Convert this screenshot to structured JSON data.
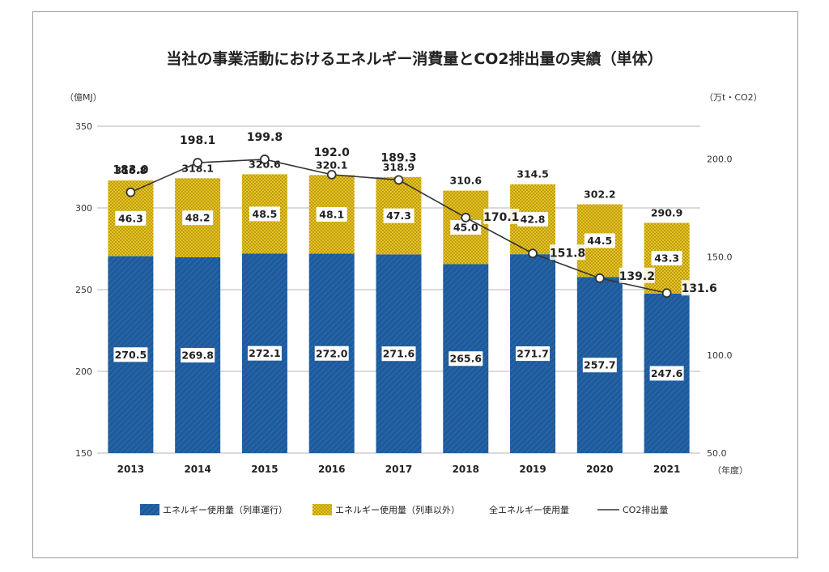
{
  "chart_data": {
    "type": "bar",
    "title": "当社の事業活動におけるエネルギー消費量とCO2排出量の実績（単体）",
    "left_unit": "（億MJ）",
    "right_unit": "（万t・CO2）",
    "x_unit": "（年度）",
    "categories": [
      "2013",
      "2014",
      "2015",
      "2016",
      "2017",
      "2018",
      "2019",
      "2020",
      "2021"
    ],
    "y_left": {
      "min": 150,
      "max": 350,
      "ticks": [
        "350",
        "300",
        "250",
        "200",
        "150"
      ],
      "tick_values": [
        350,
        300,
        250,
        200,
        150
      ]
    },
    "y_right": {
      "min": 50,
      "max": 216.7,
      "ticks": [
        "200.0",
        "150.0",
        "100.0",
        "50.0"
      ],
      "tick_values": [
        200,
        150,
        100,
        50
      ]
    },
    "series": [
      {
        "name": "エネルギー使用量（列車運行）",
        "type": "bar",
        "color": "#1f5a9a",
        "values": [
          270.5,
          269.8,
          272.1,
          272.0,
          271.6,
          265.6,
          271.7,
          257.7,
          247.6
        ],
        "labels": [
          "270.5",
          "269.8",
          "272.1",
          "272.0",
          "271.6",
          "265.6",
          "271.7",
          "257.7",
          "247.6"
        ]
      },
      {
        "name": "エネルギー使用量（列車以外）",
        "type": "bar",
        "color": "#e6c21f",
        "values": [
          46.3,
          48.2,
          48.5,
          48.1,
          47.3,
          45.0,
          42.8,
          44.5,
          43.3
        ],
        "labels": [
          "46.3",
          "48.2",
          "48.5",
          "48.1",
          "47.3",
          "45.0",
          "42.8",
          "44.5",
          "43.3"
        ]
      },
      {
        "name": "全エネルギー使用量",
        "type": "total",
        "values": [
          316.8,
          318.1,
          320.6,
          320.1,
          318.9,
          310.6,
          314.5,
          302.2,
          290.9
        ],
        "labels": [
          "316.8",
          "318.1",
          "320.6",
          "320.1",
          "318.9",
          "310.6",
          "314.5",
          "302.2",
          "290.9"
        ]
      },
      {
        "name": "CO2排出量",
        "type": "line",
        "color": "#333333",
        "values": [
          183.0,
          198.1,
          199.8,
          192.0,
          189.3,
          170.1,
          151.8,
          139.2,
          131.6
        ],
        "labels": [
          "183.0",
          "198.1",
          "199.8",
          "192.0",
          "189.3",
          "170.1",
          "151.8",
          "139.2",
          "131.6"
        ]
      }
    ],
    "grid": true,
    "legend": "bottom"
  }
}
